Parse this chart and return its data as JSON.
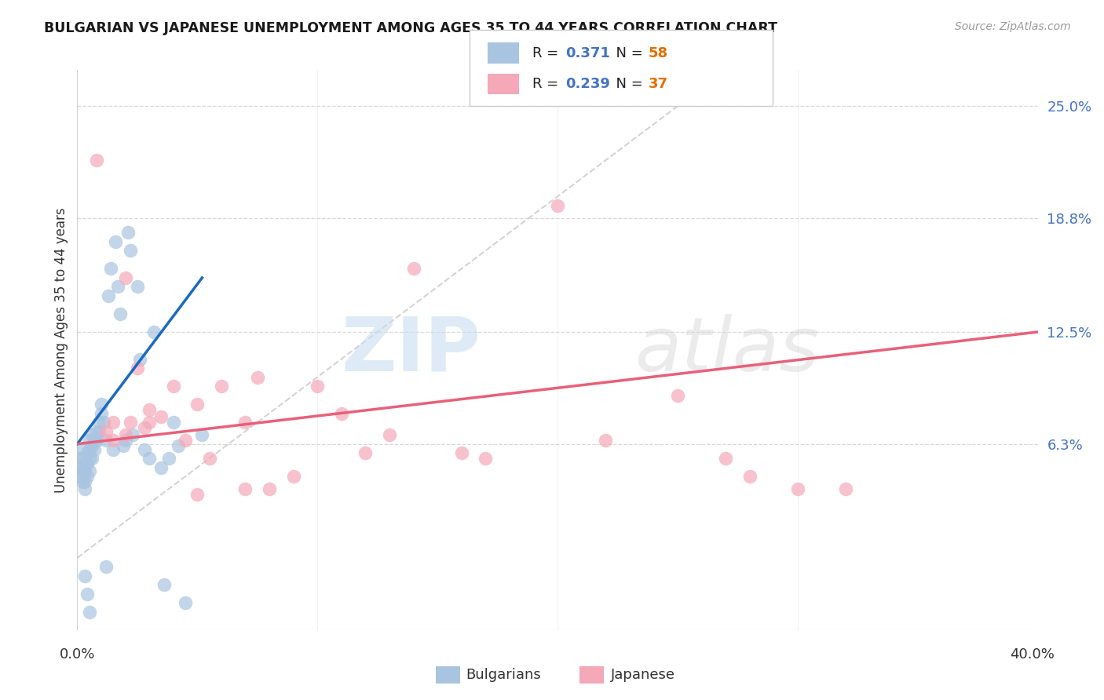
{
  "title": "BULGARIAN VS JAPANESE UNEMPLOYMENT AMONG AGES 35 TO 44 YEARS CORRELATION CHART",
  "source": "Source: ZipAtlas.com",
  "ylabel": "Unemployment Among Ages 35 to 44 years",
  "ytick_values": [
    6.3,
    12.5,
    18.8,
    25.0
  ],
  "xlim": [
    0.0,
    40.0
  ],
  "ylim": [
    -4.0,
    27.0
  ],
  "R_blue": 0.371,
  "N_blue": 58,
  "R_pink": 0.239,
  "N_pink": 37,
  "blue_color": "#a8c4e0",
  "pink_color": "#f4a8b8",
  "blue_line_color": "#1a6abf",
  "pink_line_color": "#e8607a",
  "legend_label_blue": "Bulgarians",
  "legend_label_pink": "Japanese",
  "blue_x": [
    0.1,
    0.1,
    0.1,
    0.2,
    0.2,
    0.2,
    0.2,
    0.3,
    0.3,
    0.3,
    0.3,
    0.4,
    0.4,
    0.4,
    0.5,
    0.5,
    0.5,
    0.5,
    0.6,
    0.6,
    0.6,
    0.7,
    0.7,
    0.8,
    0.8,
    0.9,
    0.9,
    1.0,
    1.0,
    1.1,
    1.2,
    1.2,
    1.3,
    1.4,
    1.5,
    1.6,
    1.7,
    1.8,
    1.9,
    2.0,
    2.1,
    2.2,
    2.3,
    2.5,
    2.6,
    2.8,
    3.0,
    3.2,
    3.5,
    3.6,
    3.8,
    4.0,
    4.2,
    4.5,
    0.3,
    0.4,
    0.5,
    5.2
  ],
  "blue_y": [
    5.5,
    5.0,
    4.5,
    4.2,
    4.8,
    5.5,
    6.0,
    5.2,
    4.8,
    4.2,
    3.8,
    5.8,
    5.2,
    4.5,
    6.5,
    6.0,
    5.5,
    4.8,
    6.8,
    6.2,
    5.5,
    6.5,
    6.0,
    7.0,
    6.5,
    7.5,
    7.0,
    8.5,
    8.0,
    7.5,
    -0.5,
    6.5,
    14.5,
    16.0,
    6.0,
    17.5,
    15.0,
    13.5,
    6.2,
    6.5,
    18.0,
    17.0,
    6.8,
    15.0,
    11.0,
    6.0,
    5.5,
    12.5,
    5.0,
    -1.5,
    5.5,
    7.5,
    6.2,
    -2.5,
    -1.0,
    -2.0,
    -3.0,
    6.8
  ],
  "pink_x": [
    0.8,
    1.2,
    1.5,
    2.0,
    2.2,
    2.5,
    2.8,
    3.0,
    3.5,
    4.0,
    4.5,
    5.0,
    5.5,
    6.0,
    7.0,
    7.5,
    8.0,
    9.0,
    10.0,
    11.0,
    12.0,
    13.0,
    14.0,
    16.0,
    17.0,
    20.0,
    22.0,
    25.0,
    27.0,
    28.0,
    30.0,
    32.0,
    1.5,
    2.0,
    3.0,
    5.0,
    7.0
  ],
  "pink_y": [
    22.0,
    7.0,
    7.5,
    6.8,
    7.5,
    10.5,
    7.2,
    7.5,
    7.8,
    9.5,
    6.5,
    8.5,
    5.5,
    9.5,
    7.5,
    10.0,
    3.8,
    4.5,
    9.5,
    8.0,
    5.8,
    6.8,
    16.0,
    5.8,
    5.5,
    19.5,
    6.5,
    9.0,
    5.5,
    4.5,
    3.8,
    3.8,
    6.5,
    15.5,
    8.2,
    3.5,
    3.8
  ]
}
